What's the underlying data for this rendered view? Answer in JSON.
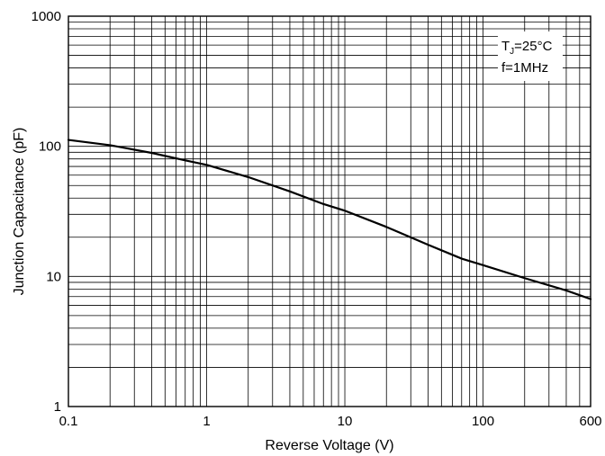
{
  "chart_data": {
    "type": "line",
    "title": "",
    "xlabel": "Reverse Voltage (V)",
    "ylabel": "Junction Capacitance (pF)",
    "xscale": "log",
    "yscale": "log",
    "xlim": [
      0.1,
      600
    ],
    "ylim": [
      1,
      1000
    ],
    "grid": true,
    "x_tick_labels": [
      "0.1",
      "1",
      "10",
      "100",
      "600"
    ],
    "x_tick_values": [
      0.1,
      1,
      10,
      100,
      600
    ],
    "y_tick_labels": [
      "1",
      "10",
      "100",
      "1000"
    ],
    "y_tick_values": [
      1,
      10,
      100,
      1000
    ],
    "series": [
      {
        "color": "#000000",
        "x": [
          0.1,
          0.2,
          0.4,
          0.7,
          1,
          2,
          4,
          7,
          10,
          20,
          40,
          70,
          100,
          200,
          400,
          600
        ],
        "y": [
          112,
          102,
          89,
          78,
          72,
          58,
          45,
          36,
          32,
          24,
          17.5,
          13.7,
          12.2,
          9.7,
          7.8,
          6.7
        ]
      }
    ],
    "annotation": {
      "line1_main": "T",
      "line1_sub": "J",
      "line1_rest": "=25°C",
      "line2": "f=1MHz"
    }
  }
}
